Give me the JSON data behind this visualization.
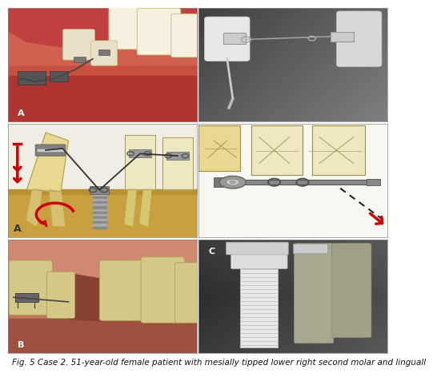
{
  "caption": "Fig. 5 Case 2. 51-year-old female patient with mesially tipped lower right second molar and linguall",
  "caption_fontsize": 7.5,
  "caption_color": "#111111",
  "background_color": "#ffffff",
  "panel_bg": {
    "p0": "#c85040",
    "p1": "#888888",
    "p2": "#f0ede0",
    "p3": "#f5f5f0",
    "p4": "#d08060",
    "p5": "#555555"
  }
}
